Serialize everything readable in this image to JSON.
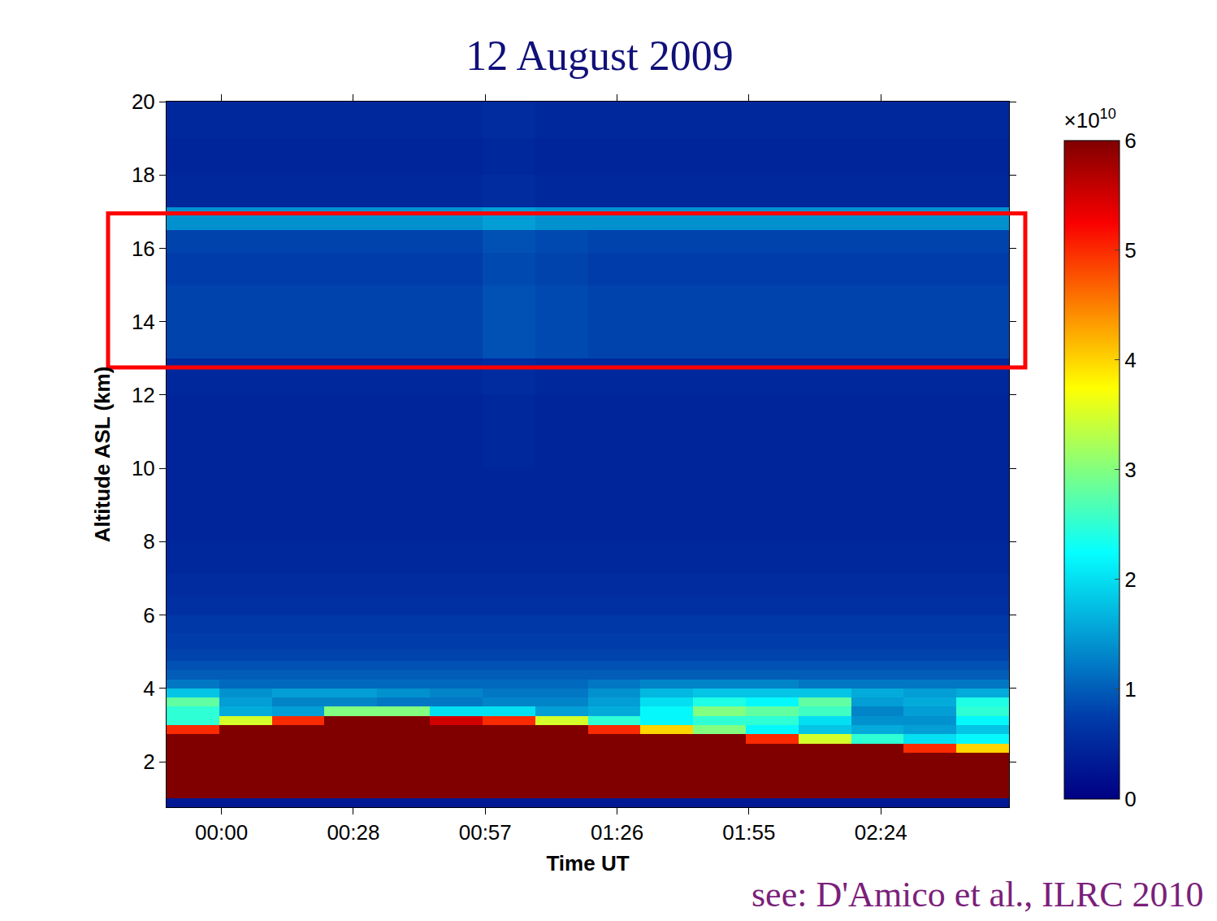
{
  "chart_data": {
    "type": "heatmap",
    "title": "12 August 2009",
    "xlabel": "Time UT",
    "ylabel": "Altitude ASL (km)",
    "annotations": [
      {
        "text": "see: D'Amico et al., ILRC 2010",
        "color": "#7b1f7b"
      }
    ],
    "x": [
      -6.25,
      5.25,
      16.75,
      28.25,
      39.75,
      51.25,
      62.75,
      74.25,
      85.75,
      97.25,
      108.75,
      120.25,
      131.75,
      143.25,
      154.75,
      166.25
    ],
    "y": [
      0.875,
      1.125,
      1.375,
      1.625,
      1.875,
      2.125,
      2.375,
      2.625,
      2.875,
      3.125,
      3.375,
      3.625,
      3.875,
      4.125,
      4.375,
      4.625,
      4.875,
      5.25,
      5.75,
      6.25,
      6.75,
      7.5,
      8.5,
      9.5,
      10.5,
      11.5,
      12.5,
      13.5,
      14.5,
      15.5,
      16.25,
      16.75,
      17.5,
      18.5,
      19.5
    ],
    "z": [
      [
        0.3,
        0.3,
        0.3,
        0.3,
        0.3,
        0.3,
        0.3,
        0.3,
        0.3,
        0.3,
        0.3,
        0.3,
        0.3,
        0.3,
        0.3,
        0.3
      ],
      [
        6,
        6,
        6,
        6,
        6,
        6,
        6,
        6,
        6,
        6,
        6,
        6,
        6,
        6,
        6,
        6
      ],
      [
        6,
        6,
        6,
        6,
        6,
        6,
        6,
        6,
        6,
        6,
        6,
        6,
        6,
        6,
        6,
        6
      ],
      [
        6,
        6,
        6,
        6,
        6,
        6,
        6,
        6,
        6,
        6,
        6,
        6,
        6,
        6,
        6,
        6
      ],
      [
        6,
        6,
        6,
        6,
        6,
        6,
        6,
        6,
        6,
        6,
        6,
        6,
        6,
        6,
        6,
        6
      ],
      [
        6,
        6,
        6,
        6,
        6,
        6,
        6,
        6,
        6,
        6,
        6,
        6,
        6,
        6,
        6,
        6
      ],
      [
        6,
        6,
        6,
        6,
        6,
        6,
        6,
        6,
        6,
        6,
        6,
        6,
        6,
        6,
        5,
        4
      ],
      [
        6,
        6,
        6,
        6,
        6,
        6,
        6,
        6,
        6,
        6,
        6,
        5,
        3.5,
        2.5,
        2,
        2.2
      ],
      [
        5,
        6,
        6,
        6,
        6,
        6,
        6,
        6,
        5,
        4,
        3,
        2.2,
        1.8,
        1.6,
        1.5,
        1.8
      ],
      [
        2.5,
        3.5,
        5,
        6,
        6,
        5.5,
        5,
        3.5,
        2.5,
        2.2,
        2.5,
        2.5,
        2,
        1.4,
        1.4,
        2.2
      ],
      [
        2.5,
        1.6,
        1.5,
        3,
        3,
        2,
        2,
        1.5,
        1.6,
        2.2,
        3,
        2.8,
        2.6,
        1.3,
        1.5,
        2.5
      ],
      [
        2.8,
        1.5,
        1.3,
        1.3,
        1.2,
        1.2,
        1.3,
        1.3,
        1.5,
        2,
        2.4,
        2.2,
        2.8,
        1.5,
        1.6,
        2.4
      ],
      [
        1.8,
        1.4,
        1.5,
        1.5,
        1.4,
        1.3,
        1.2,
        1.2,
        1.4,
        1.7,
        1.8,
        1.8,
        1.8,
        1.6,
        1.5,
        1.6
      ],
      [
        1.2,
        1.1,
        1.1,
        1.1,
        1.1,
        1.1,
        1.1,
        1.1,
        1.2,
        1.3,
        1.3,
        1.3,
        1.2,
        1.2,
        1.2,
        1.2
      ],
      [
        1,
        1,
        1,
        1,
        1,
        1,
        1,
        1,
        1,
        1,
        1,
        1,
        1,
        1,
        1,
        1
      ],
      [
        0.9,
        0.9,
        0.9,
        0.9,
        0.9,
        0.9,
        0.9,
        0.9,
        0.9,
        0.9,
        0.9,
        0.9,
        0.9,
        0.9,
        0.9,
        0.9
      ],
      [
        0.8,
        0.8,
        0.8,
        0.8,
        0.8,
        0.8,
        0.8,
        0.8,
        0.8,
        0.8,
        0.8,
        0.8,
        0.8,
        0.8,
        0.8,
        0.8
      ],
      [
        0.75,
        0.75,
        0.75,
        0.75,
        0.75,
        0.75,
        0.75,
        0.75,
        0.75,
        0.75,
        0.75,
        0.75,
        0.75,
        0.75,
        0.75,
        0.75
      ],
      [
        0.7,
        0.7,
        0.7,
        0.7,
        0.7,
        0.7,
        0.7,
        0.7,
        0.7,
        0.7,
        0.7,
        0.7,
        0.7,
        0.7,
        0.7,
        0.7
      ],
      [
        0.6,
        0.6,
        0.6,
        0.6,
        0.6,
        0.6,
        0.6,
        0.6,
        0.6,
        0.6,
        0.6,
        0.6,
        0.6,
        0.6,
        0.6,
        0.6
      ],
      [
        0.55,
        0.55,
        0.55,
        0.55,
        0.55,
        0.55,
        0.55,
        0.55,
        0.55,
        0.55,
        0.55,
        0.55,
        0.55,
        0.55,
        0.55,
        0.55
      ],
      [
        0.5,
        0.5,
        0.5,
        0.5,
        0.5,
        0.5,
        0.5,
        0.5,
        0.5,
        0.5,
        0.5,
        0.5,
        0.5,
        0.5,
        0.5,
        0.5
      ],
      [
        0.45,
        0.45,
        0.45,
        0.45,
        0.45,
        0.45,
        0.45,
        0.45,
        0.45,
        0.45,
        0.45,
        0.45,
        0.45,
        0.45,
        0.45,
        0.45
      ],
      [
        0.45,
        0.45,
        0.45,
        0.45,
        0.45,
        0.45,
        0.45,
        0.45,
        0.45,
        0.45,
        0.45,
        0.45,
        0.45,
        0.45,
        0.45,
        0.45
      ],
      [
        0.45,
        0.45,
        0.45,
        0.45,
        0.45,
        0.45,
        0.5,
        0.45,
        0.45,
        0.45,
        0.45,
        0.45,
        0.45,
        0.45,
        0.45,
        0.45
      ],
      [
        0.45,
        0.45,
        0.45,
        0.45,
        0.45,
        0.45,
        0.5,
        0.45,
        0.45,
        0.45,
        0.45,
        0.45,
        0.45,
        0.45,
        0.45,
        0.45
      ],
      [
        0.5,
        0.5,
        0.5,
        0.5,
        0.5,
        0.5,
        0.55,
        0.5,
        0.5,
        0.5,
        0.5,
        0.5,
        0.5,
        0.5,
        0.5,
        0.5
      ],
      [
        0.8,
        0.8,
        0.8,
        0.8,
        0.8,
        0.8,
        0.9,
        0.85,
        0.8,
        0.8,
        0.8,
        0.8,
        0.8,
        0.8,
        0.8,
        0.8
      ],
      [
        0.8,
        0.8,
        0.8,
        0.8,
        0.8,
        0.8,
        0.9,
        0.85,
        0.8,
        0.8,
        0.8,
        0.8,
        0.8,
        0.8,
        0.8,
        0.8
      ],
      [
        0.75,
        0.75,
        0.75,
        0.75,
        0.75,
        0.75,
        0.85,
        0.8,
        0.75,
        0.75,
        0.75,
        0.75,
        0.75,
        0.75,
        0.75,
        0.75
      ],
      [
        0.8,
        0.8,
        0.8,
        0.8,
        0.8,
        0.8,
        0.9,
        0.85,
        0.8,
        0.8,
        0.8,
        0.8,
        0.8,
        0.8,
        0.8,
        0.8
      ],
      [
        1.4,
        1.4,
        1.4,
        1.4,
        1.4,
        1.4,
        1.5,
        1.4,
        1.4,
        1.4,
        1.4,
        1.4,
        1.4,
        1.4,
        1.4,
        1.4
      ],
      [
        0.5,
        0.5,
        0.5,
        0.5,
        0.5,
        0.5,
        0.55,
        0.5,
        0.5,
        0.5,
        0.5,
        0.5,
        0.5,
        0.5,
        0.5,
        0.5
      ],
      [
        0.45,
        0.45,
        0.45,
        0.45,
        0.45,
        0.45,
        0.5,
        0.45,
        0.45,
        0.45,
        0.45,
        0.45,
        0.45,
        0.45,
        0.45,
        0.45
      ],
      [
        0.5,
        0.5,
        0.5,
        0.5,
        0.5,
        0.5,
        0.55,
        0.5,
        0.5,
        0.5,
        0.5,
        0.5,
        0.5,
        0.5,
        0.5,
        0.5
      ]
    ],
    "xlim": [
      -12,
      172
    ],
    "xticks": [
      {
        "value": 0,
        "label": "00:00"
      },
      {
        "value": 28.8,
        "label": "00:28"
      },
      {
        "value": 57.6,
        "label": "00:57"
      },
      {
        "value": 86.4,
        "label": "01:26"
      },
      {
        "value": 115.2,
        "label": "01:55"
      },
      {
        "value": 144,
        "label": "02:24"
      }
    ],
    "ylim": [
      0.76,
      20
    ],
    "yticks": [
      2,
      4,
      6,
      8,
      10,
      12,
      14,
      16,
      18,
      20
    ],
    "colorbar": {
      "range": [
        0,
        6
      ],
      "ticks": [
        0,
        1,
        2,
        3,
        4,
        5,
        6
      ],
      "multiplier": {
        "base": "×10",
        "exponent": "10"
      }
    },
    "highlight": {
      "ylim": [
        12.75,
        16.95
      ],
      "color": "#ff0000"
    }
  }
}
